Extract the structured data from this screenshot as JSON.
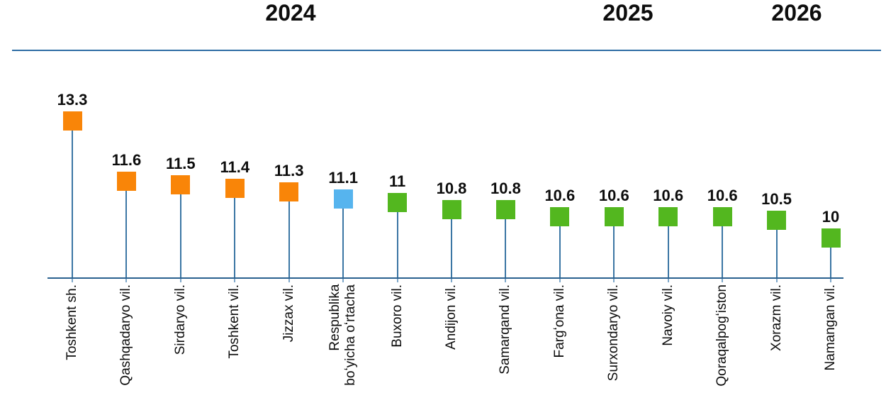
{
  "header": {
    "years": [
      "2024",
      "2025",
      "2026"
    ],
    "rule_color": "#2E6DA4"
  },
  "chart_data": {
    "type": "bar",
    "variant": "lollipop-square-markers",
    "title": "",
    "xlabel": "",
    "ylabel": "",
    "grid": false,
    "legend": false,
    "ylim": [
      8.86,
      13.9
    ],
    "categories": [
      "Toshkent sh.",
      "Qashqadaryo vil.",
      "Sirdaryo vil.",
      "Toshkent vil.",
      "Jizzax vil.",
      "Respublika\nboʻyicha oʻrtacha",
      "Buxoro vil.",
      "Andijon vil.",
      "Samarqand vil.",
      "Fargʻona vil.",
      "Surxondaryo vil.",
      "Navoiy vil.",
      "Qoraqalpogʻiston",
      "Xorazm vil.",
      "Namangan vil."
    ],
    "values": [
      13.3,
      11.6,
      11.5,
      11.4,
      11.3,
      11.1,
      11,
      10.8,
      10.8,
      10.6,
      10.6,
      10.6,
      10.6,
      10.5,
      10
    ],
    "value_labels": [
      "13.3",
      "11.6",
      "11.5",
      "11.4",
      "11.3",
      "11.1",
      "11",
      "10.8",
      "10.8",
      "10.6",
      "10.6",
      "10.6",
      "10.6",
      "10.5",
      "10"
    ],
    "point_colors": [
      "orange",
      "orange",
      "orange",
      "orange",
      "orange",
      "blue",
      "green",
      "green",
      "green",
      "green",
      "green",
      "green",
      "green",
      "green",
      "green"
    ],
    "palette": {
      "orange": "#F98508",
      "green": "#53B71F",
      "blue": "#56B4EE"
    },
    "stem_color": "#3B76A4",
    "axis_color": "#2A618F",
    "tick_color": "#7EA7C9"
  }
}
